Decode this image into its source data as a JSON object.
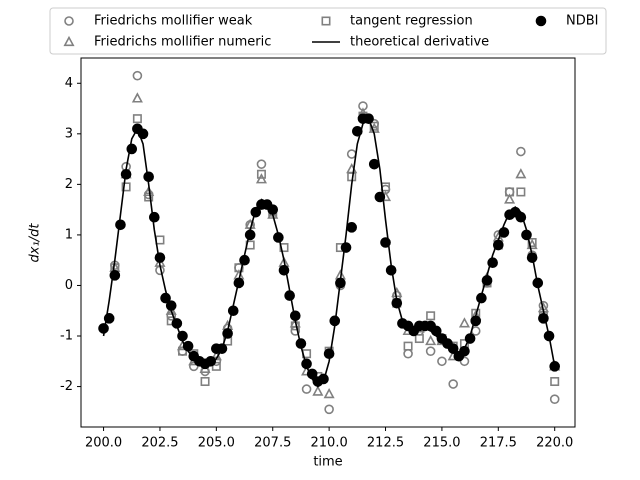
{
  "chart_data": {
    "type": "scatter",
    "x_label": "time",
    "y_label": "dx₁/dt",
    "xlim": [
      199.0,
      220.9
    ],
    "ylim": [
      -2.8,
      4.5
    ],
    "xticks": [
      {
        "value": 200,
        "label": "200.0"
      },
      {
        "value": 202.5,
        "label": "202.5"
      },
      {
        "value": 205,
        "label": "205.0"
      },
      {
        "value": 207.5,
        "label": "207.5"
      },
      {
        "value": 210,
        "label": "210.0"
      },
      {
        "value": 212.5,
        "label": "212.5"
      },
      {
        "value": 215,
        "label": "215.0"
      },
      {
        "value": 217.5,
        "label": "217.5"
      },
      {
        "value": 220,
        "label": "220.0"
      }
    ],
    "yticks": [
      -2,
      -1,
      0,
      1,
      2,
      3,
      4
    ],
    "legend": "top-outside",
    "series": [
      {
        "name": "Friedrichs mollifier weak",
        "type": "scatter",
        "marker": "circle",
        "filled": false,
        "color": "#808080",
        "x": [
          200,
          200.5,
          201,
          201.5,
          202,
          202.5,
          203,
          203.5,
          204,
          204.5,
          205,
          205.5,
          206,
          206.5,
          207,
          207.5,
          208,
          208.5,
          209,
          209.5,
          210,
          210.5,
          211,
          211.5,
          212,
          212.5,
          213,
          213.5,
          214,
          214.5,
          215,
          215.5,
          216,
          216.5,
          217,
          217.5,
          218,
          218.5,
          219,
          219.5,
          220
        ],
        "values": [
          null,
          0.4,
          2.35,
          4.15,
          1.8,
          0.3,
          -0.6,
          -1.3,
          -1.6,
          -1.7,
          -1.5,
          -0.85,
          0.35,
          1.2,
          2.4,
          1.5,
          0.3,
          -0.9,
          -2.05,
          -1.9,
          -2.45,
          0.0,
          2.6,
          3.55,
          3.2,
          1.9,
          -0.2,
          -1.35,
          -0.9,
          -1.3,
          -1.5,
          -1.95,
          -1.5,
          -0.9,
          0.05,
          1.0,
          1.85,
          2.65,
          0.6,
          -0.4,
          -2.25
        ]
      },
      {
        "name": "Friedrichs mollifier numeric",
        "type": "scatter",
        "marker": "triangle",
        "filled": false,
        "color": "#808080",
        "x": [
          200,
          200.5,
          201,
          201.5,
          202,
          202.5,
          203,
          203.5,
          204,
          204.5,
          205,
          205.5,
          206,
          206.5,
          207,
          207.5,
          208,
          208.5,
          209,
          209.5,
          210,
          210.5,
          211,
          211.5,
          212,
          212.5,
          213,
          213.5,
          214,
          214.5,
          215,
          215.5,
          216,
          216.5,
          217,
          217.5,
          218,
          218.5,
          219,
          219.5,
          220
        ],
        "values": [
          null,
          0.35,
          2.2,
          3.7,
          1.85,
          0.45,
          -0.5,
          -1.2,
          -1.5,
          -1.65,
          -1.4,
          -0.8,
          0.2,
          1.2,
          2.1,
          1.4,
          0.45,
          -0.75,
          -1.7,
          -2.1,
          -2.15,
          0.2,
          2.3,
          3.4,
          3.1,
          1.75,
          -0.15,
          -0.9,
          -0.85,
          -1.1,
          -1.1,
          -1.4,
          -0.75,
          -0.6,
          0.15,
          0.95,
          1.7,
          2.2,
          0.8,
          -0.45,
          -1.6
        ]
      },
      {
        "name": "tangent regression",
        "type": "scatter",
        "marker": "square",
        "filled": false,
        "color": "#808080",
        "x": [
          200,
          200.5,
          201,
          201.5,
          202,
          202.5,
          203,
          203.5,
          204,
          204.5,
          205,
          205.5,
          206,
          206.5,
          207,
          207.5,
          208,
          208.5,
          209,
          209.5,
          210,
          210.5,
          211,
          211.5,
          212,
          212.5,
          213,
          213.5,
          214,
          214.5,
          215,
          215.5,
          216,
          216.5,
          217,
          217.5,
          218,
          218.5,
          219,
          219.5,
          220
        ],
        "values": [
          null,
          0.35,
          1.95,
          3.3,
          1.75,
          0.9,
          -0.7,
          -1.3,
          -1.35,
          -1.9,
          -1.6,
          -1.1,
          0.35,
          0.8,
          2.2,
          1.45,
          0.75,
          -0.8,
          -1.35,
          -1.8,
          -1.3,
          0.75,
          2.15,
          3.35,
          3.15,
          1.95,
          -0.35,
          -1.2,
          -1.05,
          -0.6,
          -1.05,
          -1.2,
          -1.15,
          -0.55,
          0.05,
          0.8,
          1.85,
          1.85,
          0.85,
          -0.6,
          -1.9
        ]
      },
      {
        "name": "theoretical derivative",
        "type": "line",
        "color": "#000000",
        "x": [
          200,
          200.25,
          200.5,
          200.75,
          201,
          201.25,
          201.5,
          201.75,
          202,
          202.25,
          202.5,
          202.75,
          203,
          203.25,
          203.5,
          203.75,
          204,
          204.25,
          204.5,
          204.75,
          205,
          205.25,
          205.5,
          205.75,
          206,
          206.25,
          206.5,
          206.75,
          207,
          207.25,
          207.5,
          207.75,
          208,
          208.25,
          208.5,
          208.75,
          209,
          209.25,
          209.5,
          209.75,
          210,
          210.25,
          210.5,
          210.75,
          211,
          211.25,
          211.5,
          211.75,
          212,
          212.25,
          212.5,
          212.75,
          213,
          213.25,
          213.5,
          213.75,
          214,
          214.25,
          214.5,
          214.75,
          215,
          215.25,
          215.5,
          215.75,
          216,
          216.25,
          216.5,
          216.75,
          217,
          217.25,
          217.5,
          217.75,
          218,
          218.25,
          218.5,
          218.75,
          219,
          219.25,
          219.5,
          219.75,
          220
        ],
        "values": [
          -1.0,
          -0.3,
          0.5,
          1.4,
          2.3,
          2.9,
          3.1,
          2.8,
          2.0,
          1.1,
          0.4,
          -0.1,
          -0.5,
          -0.8,
          -1.1,
          -1.3,
          -1.45,
          -1.55,
          -1.6,
          -1.55,
          -1.45,
          -1.25,
          -0.9,
          -0.4,
          0.1,
          0.6,
          1.1,
          1.5,
          1.7,
          1.65,
          1.4,
          1.0,
          0.5,
          -0.1,
          -0.7,
          -1.2,
          -1.6,
          -1.85,
          -2.0,
          -1.9,
          -1.5,
          -0.8,
          0.1,
          1.0,
          2.0,
          2.8,
          3.2,
          3.3,
          3.0,
          2.3,
          1.3,
          0.4,
          -0.3,
          -0.7,
          -0.85,
          -0.9,
          -0.85,
          -0.85,
          -0.9,
          -1.0,
          -1.1,
          -1.2,
          -1.3,
          -1.35,
          -1.25,
          -1.0,
          -0.6,
          -0.2,
          0.2,
          0.6,
          0.9,
          1.2,
          1.45,
          1.55,
          1.45,
          1.1,
          0.6,
          0.0,
          -0.5,
          -1.0,
          -1.6
        ]
      },
      {
        "name": "NDBI",
        "type": "scatter",
        "marker": "circle",
        "filled": true,
        "color": "#000000",
        "x": [
          200,
          200.25,
          200.5,
          200.75,
          201,
          201.25,
          201.5,
          201.75,
          202,
          202.25,
          202.5,
          202.75,
          203,
          203.25,
          203.5,
          203.75,
          204,
          204.25,
          204.5,
          204.75,
          205,
          205.25,
          205.5,
          205.75,
          206,
          206.25,
          206.5,
          206.75,
          207,
          207.25,
          207.5,
          207.75,
          208,
          208.25,
          208.5,
          208.75,
          209,
          209.25,
          209.5,
          209.75,
          210,
          210.25,
          210.5,
          210.75,
          211,
          211.25,
          211.5,
          211.75,
          212,
          212.25,
          212.5,
          212.75,
          213,
          213.25,
          213.5,
          213.75,
          214,
          214.25,
          214.5,
          214.75,
          215,
          215.25,
          215.5,
          215.75,
          216,
          216.25,
          216.5,
          216.75,
          217,
          217.25,
          217.5,
          217.75,
          218,
          218.25,
          218.5,
          218.75,
          219,
          219.25,
          219.5,
          219.75,
          220
        ],
        "values": [
          -0.85,
          -0.65,
          0.2,
          1.2,
          2.2,
          2.7,
          3.1,
          3.0,
          2.15,
          1.35,
          0.55,
          -0.25,
          -0.4,
          -0.75,
          -1.0,
          -1.2,
          -1.4,
          -1.5,
          -1.55,
          -1.5,
          -1.25,
          -1.25,
          -0.95,
          -0.5,
          0.05,
          0.5,
          1.0,
          1.45,
          1.6,
          1.6,
          1.5,
          0.95,
          0.3,
          -0.2,
          -0.6,
          -1.15,
          -1.55,
          -1.75,
          -1.9,
          -1.85,
          -1.35,
          -0.7,
          0.05,
          0.75,
          1.15,
          3.05,
          3.3,
          3.3,
          2.4,
          1.75,
          0.85,
          0.3,
          -0.35,
          -0.75,
          -0.8,
          -0.9,
          -0.8,
          -0.8,
          -0.8,
          -0.9,
          -1.05,
          -1.15,
          -1.25,
          -1.4,
          -1.3,
          -1.05,
          -0.7,
          -0.25,
          0.1,
          0.45,
          0.8,
          1.05,
          1.4,
          1.45,
          1.35,
          1.0,
          0.55,
          0.05,
          -0.65,
          -1.0,
          -1.6
        ]
      }
    ]
  }
}
